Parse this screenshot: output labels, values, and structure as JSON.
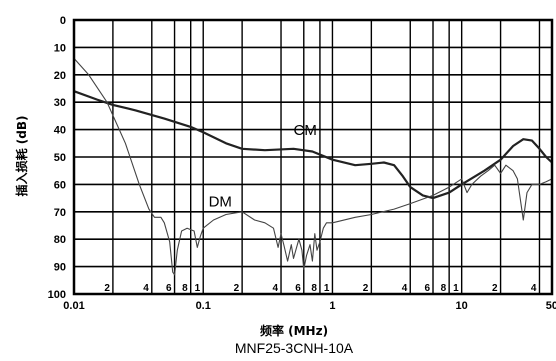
{
  "chart_data": {
    "type": "line",
    "xscale": "log",
    "yaxis_inverted": true,
    "xlim": [
      0.01,
      50
    ],
    "ylim": [
      0,
      100
    ],
    "ylabel": "插入损耗 (dB)",
    "xlabel": "频率 (MHz)",
    "caption": "MNF25-3CNH-10A",
    "grid": true,
    "y_ticks": [
      "0",
      "10",
      "20",
      "30",
      "40",
      "50",
      "60",
      "70",
      "80",
      "90",
      "100"
    ],
    "y_tick_values": [
      0,
      10,
      20,
      30,
      40,
      50,
      60,
      70,
      80,
      90,
      100
    ],
    "x_major_ticks": [
      {
        "value": 0.01,
        "label": "0.01"
      },
      {
        "value": 0.1,
        "label": "0.1"
      },
      {
        "value": 1,
        "label": "1"
      },
      {
        "value": 10,
        "label": "10"
      },
      {
        "value": 50,
        "label": "50"
      }
    ],
    "x_minor_ticks": [
      {
        "value": 0.02,
        "label": "2"
      },
      {
        "value": 0.04,
        "label": "4"
      },
      {
        "value": 0.06,
        "label": "6"
      },
      {
        "value": 0.08,
        "label": "8"
      },
      {
        "value": 0.1,
        "label": "1"
      },
      {
        "value": 0.2,
        "label": "2"
      },
      {
        "value": 0.4,
        "label": "4"
      },
      {
        "value": 0.6,
        "label": "6"
      },
      {
        "value": 0.8,
        "label": "8"
      },
      {
        "value": 1,
        "label": "1"
      },
      {
        "value": 2,
        "label": "2"
      },
      {
        "value": 4,
        "label": "4"
      },
      {
        "value": 6,
        "label": "6"
      },
      {
        "value": 8,
        "label": "8"
      },
      {
        "value": 10,
        "label": "1"
      },
      {
        "value": 20,
        "label": "2"
      },
      {
        "value": 40,
        "label": "4"
      }
    ],
    "series": [
      {
        "name": "CM",
        "color": "#222222",
        "label_at": [
          0.5,
          42
        ],
        "points": [
          [
            0.01,
            26
          ],
          [
            0.015,
            29
          ],
          [
            0.02,
            31
          ],
          [
            0.03,
            33
          ],
          [
            0.05,
            36
          ],
          [
            0.08,
            39
          ],
          [
            0.1,
            41
          ],
          [
            0.15,
            45
          ],
          [
            0.2,
            47
          ],
          [
            0.3,
            47.5
          ],
          [
            0.5,
            47
          ],
          [
            0.7,
            48
          ],
          [
            1.0,
            51
          ],
          [
            1.5,
            53
          ],
          [
            2.0,
            52.5
          ],
          [
            2.5,
            52
          ],
          [
            3.0,
            53
          ],
          [
            3.5,
            57
          ],
          [
            4.0,
            61
          ],
          [
            5.0,
            64
          ],
          [
            6.0,
            65
          ],
          [
            8.0,
            63
          ],
          [
            10.0,
            60
          ],
          [
            15.0,
            55
          ],
          [
            20.0,
            51
          ],
          [
            25.0,
            46
          ],
          [
            30.0,
            43.5
          ],
          [
            35.0,
            44
          ],
          [
            40.0,
            47
          ],
          [
            45.0,
            50
          ],
          [
            50.0,
            52
          ]
        ]
      },
      {
        "name": "DM",
        "color": "#444444",
        "label_at": [
          0.11,
          68
        ],
        "points": [
          [
            0.01,
            14
          ],
          [
            0.013,
            20
          ],
          [
            0.018,
            30
          ],
          [
            0.025,
            45
          ],
          [
            0.032,
            60
          ],
          [
            0.038,
            69
          ],
          [
            0.042,
            72
          ],
          [
            0.047,
            72
          ],
          [
            0.05,
            74
          ],
          [
            0.055,
            81
          ],
          [
            0.058,
            92
          ],
          [
            0.06,
            93
          ],
          [
            0.063,
            84
          ],
          [
            0.068,
            77
          ],
          [
            0.075,
            76
          ],
          [
            0.085,
            77
          ],
          [
            0.09,
            83
          ],
          [
            0.095,
            79
          ],
          [
            0.1,
            76
          ],
          [
            0.12,
            73
          ],
          [
            0.15,
            71
          ],
          [
            0.2,
            70
          ],
          [
            0.25,
            73
          ],
          [
            0.3,
            74
          ],
          [
            0.35,
            76
          ],
          [
            0.38,
            83
          ],
          [
            0.4,
            78
          ],
          [
            0.42,
            82
          ],
          [
            0.45,
            88
          ],
          [
            0.48,
            82
          ],
          [
            0.5,
            87
          ],
          [
            0.55,
            80
          ],
          [
            0.58,
            84
          ],
          [
            0.6,
            91
          ],
          [
            0.63,
            86
          ],
          [
            0.67,
            82
          ],
          [
            0.7,
            88
          ],
          [
            0.73,
            78
          ],
          [
            0.76,
            84
          ],
          [
            0.8,
            81
          ],
          [
            0.85,
            76
          ],
          [
            0.9,
            74
          ],
          [
            1.0,
            74
          ],
          [
            1.5,
            72
          ],
          [
            2.0,
            71
          ],
          [
            3.0,
            69
          ],
          [
            4.0,
            67
          ],
          [
            6.0,
            64
          ],
          [
            8.0,
            61
          ],
          [
            10.0,
            58
          ],
          [
            11.0,
            63
          ],
          [
            12.0,
            60
          ],
          [
            14.0,
            57
          ],
          [
            16.0,
            55
          ],
          [
            18.0,
            53
          ],
          [
            20.0,
            56
          ],
          [
            22.0,
            53
          ],
          [
            25.0,
            55
          ],
          [
            27.0,
            58
          ],
          [
            30.0,
            73
          ],
          [
            32.0,
            63
          ],
          [
            35.0,
            60
          ],
          [
            40.0,
            60
          ],
          [
            45.0,
            59
          ],
          [
            50.0,
            58
          ]
        ]
      }
    ]
  }
}
